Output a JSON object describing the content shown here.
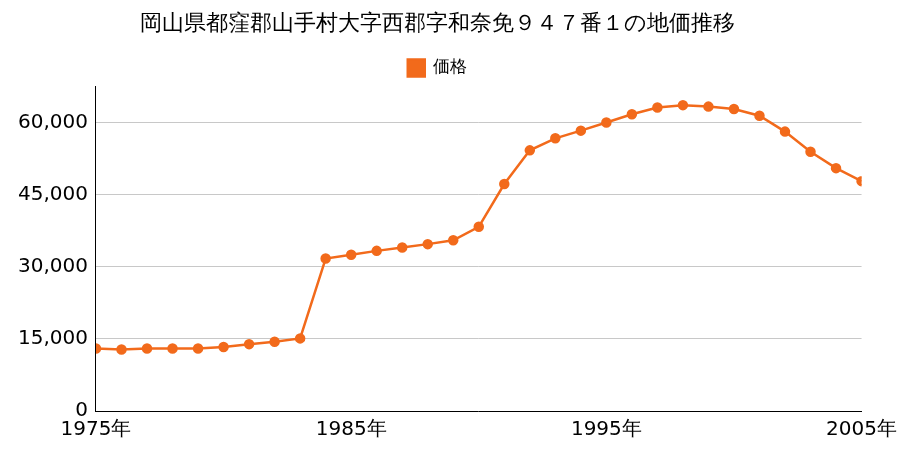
{
  "chart_data": {
    "type": "line",
    "title": "岡山県都窪郡山手村大字西郡字和奈免９４７番１の地価推移",
    "x": [
      1975,
      1976,
      1977,
      1978,
      1979,
      1980,
      1981,
      1982,
      1983,
      1984,
      1985,
      1986,
      1987,
      1988,
      1989,
      1990,
      1991,
      1992,
      1993,
      1994,
      1995,
      1996,
      1997,
      1998,
      1999,
      2000,
      2001,
      2002,
      2003,
      2004,
      2005
    ],
    "series": [
      {
        "name": "価格",
        "color": "#f26a1b",
        "marker": "circle",
        "line_style": "solid",
        "values": [
          13000,
          12800,
          13000,
          13000,
          13000,
          13300,
          13900,
          14400,
          15100,
          31700,
          32500,
          33300,
          34000,
          34700,
          35500,
          38300,
          47200,
          54200,
          56700,
          58300,
          60000,
          61700,
          63100,
          63600,
          63300,
          62800,
          61400,
          58100,
          53900,
          50500,
          47800
        ]
      }
    ],
    "xlim": [
      1975,
      2005
    ],
    "xticks": [
      {
        "value": 1975,
        "label": "1975年"
      },
      {
        "value": 1985,
        "label": "1985年"
      },
      {
        "value": 1995,
        "label": "1995年"
      },
      {
        "value": 2005,
        "label": "2005年"
      }
    ],
    "ylim": [
      0,
      67500
    ],
    "yticks": [
      0,
      {
        "value": 15000,
        "label": "15,000"
      },
      {
        "value": 30000,
        "label": "30,000"
      },
      {
        "value": 45000,
        "label": "45,000"
      },
      {
        "value": 60000,
        "label": "60,000"
      }
    ],
    "grid": true,
    "legend": "top"
  }
}
